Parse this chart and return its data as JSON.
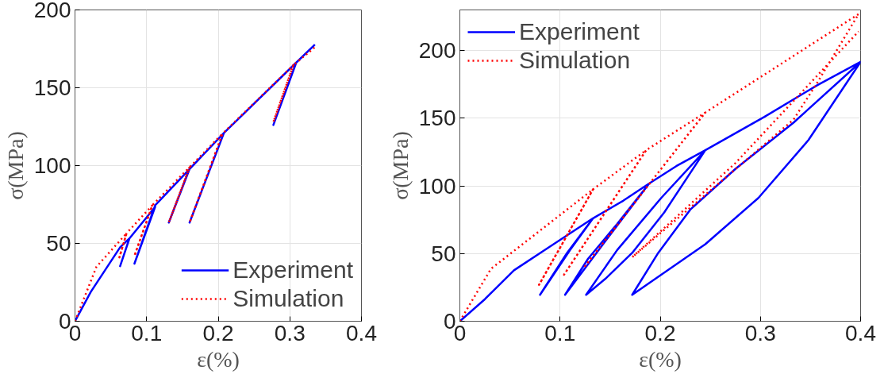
{
  "chart_data": [
    {
      "type": "line",
      "xlabel": "ε(%)",
      "ylabel": "σ(MPa)",
      "xlim": [
        0,
        0.4
      ],
      "ylim": [
        0,
        200
      ],
      "xticks": [
        0,
        0.1,
        0.2,
        0.3,
        0.4
      ],
      "yticks": [
        0,
        50,
        100,
        150,
        200
      ],
      "grid": true,
      "legend": "bottom right",
      "series": [
        {
          "name": "Experiment",
          "color": "#0000ff",
          "line_style": "solid",
          "x": [
            0,
            0.022,
            0.063,
            0.076,
            0.063,
            0.076,
            0.112,
            0.083,
            0.112,
            0.16,
            0.131,
            0.16,
            0.208,
            0.16,
            0.208,
            0.309,
            0.277,
            0.309,
            0.335
          ],
          "values": [
            0,
            18.8,
            47.5,
            53.2,
            35.4,
            53.2,
            73.5,
            37.0,
            74.5,
            97.8,
            63.4,
            97.8,
            121,
            63.4,
            121,
            166.2,
            126.1,
            166.2,
            177.7
          ]
        },
        {
          "name": "Simulation",
          "color": "#ff0000",
          "line_style": "dotted",
          "x": [
            0,
            0.03,
            0.072,
            0.062,
            0.072,
            0.108,
            0.083,
            0.108,
            0.16,
            0.131,
            0.16,
            0.206,
            0.16,
            0.206,
            0.305,
            0.277,
            0.305,
            0.335
          ],
          "values": [
            0,
            35,
            56.5,
            41,
            56.5,
            74.5,
            42,
            74.5,
            99,
            63.4,
            99,
            120.5,
            63.4,
            120.5,
            164.6,
            128,
            164.6,
            176
          ]
        }
      ]
    },
    {
      "type": "line",
      "xlabel": "ε(%)",
      "ylabel": "σ(MPa)",
      "xlim": [
        0,
        0.4
      ],
      "ylim": [
        0,
        230
      ],
      "xticks": [
        0,
        0.1,
        0.2,
        0.3,
        0.4
      ],
      "yticks": [
        0,
        50,
        100,
        150,
        200
      ],
      "grid": true,
      "legend": "top left",
      "series": [
        {
          "name": "Experiment",
          "color": "#0000ff",
          "line_style": "solid",
          "x": [
            0,
            0.025,
            0.054,
            0.089,
            0.133,
            0.107,
            0.08,
            0.11,
            0.133,
            0.163,
            0.189,
            0.157,
            0.128,
            0.105,
            0.145,
            0.189,
            0.216,
            0.245,
            0.204,
            0.172,
            0.145,
            0.126,
            0.157,
            0.201,
            0.245,
            0.304,
            0.357,
            0.4,
            0.348,
            0.298,
            0.245,
            0.172,
            0.198,
            0.23,
            0.275,
            0.333,
            0.4
          ],
          "values": [
            0,
            16.3,
            37.6,
            54.7,
            76.1,
            50.5,
            19.5,
            52.6,
            76.1,
            89.0,
            101.8,
            71.9,
            46.2,
            19.5,
            59.0,
            101.8,
            114.6,
            126.4,
            80.4,
            50.5,
            31.2,
            19.5,
            52.6,
            91.1,
            126.4,
            151,
            174.5,
            191.6,
            133.9,
            91.1,
            56.9,
            19.5,
            50.5,
            82.5,
            112.5,
            146.7,
            191.6
          ]
        },
        {
          "name": "Simulation",
          "color": "#ff0000",
          "line_style": "dotted",
          "x": [
            0,
            0.031,
            0.133,
            0.079,
            0.133,
            0.186,
            0.104,
            0.186,
            0.245,
            0.125,
            0.245,
            0.398,
            0.357,
            0.333,
            0.172,
            0.275,
            0.398
          ],
          "values": [
            0,
            38.7,
            97.5,
            26.9,
            97.5,
            126.4,
            34.4,
            126.4,
            154.2,
            40.8,
            154.2,
            226.9,
            176.6,
            148.9,
            47.3,
            116.8,
            214.1
          ]
        }
      ]
    }
  ]
}
